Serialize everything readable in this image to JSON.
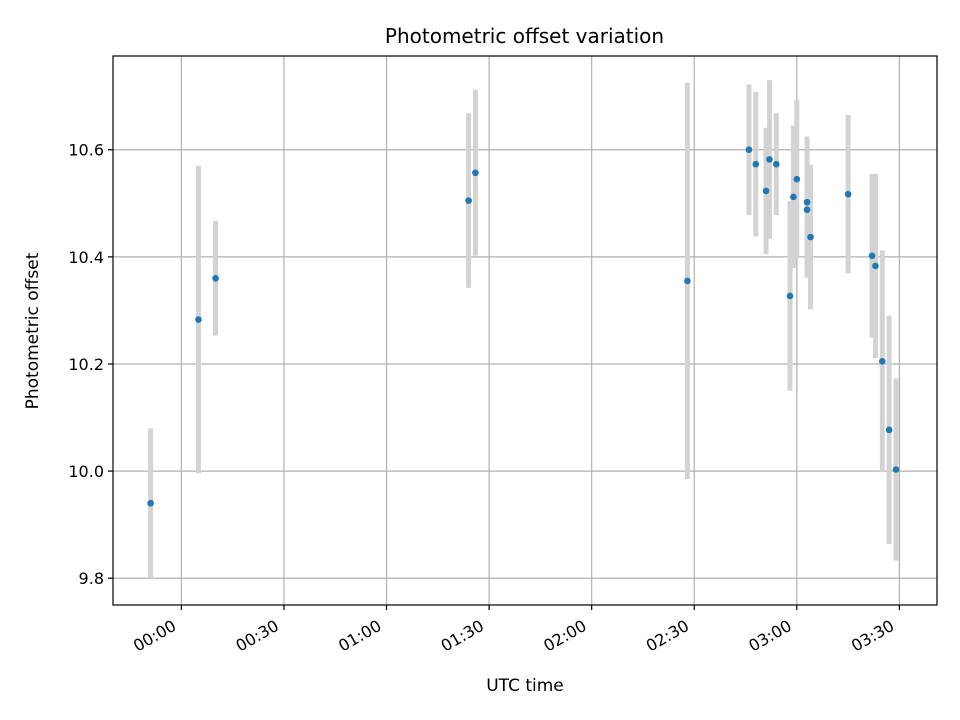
{
  "chart_data": {
    "type": "scatter",
    "title": "Photometric offset variation",
    "xlabel": "UTC time",
    "ylabel": "Photometric offset",
    "x_ticks": [
      "00:00",
      "00:30",
      "01:00",
      "01:30",
      "02:00",
      "02:30",
      "03:00",
      "03:30"
    ],
    "y_ticks": [
      "9.8",
      "10.0",
      "10.2",
      "10.4",
      "10.6"
    ],
    "x_tick_values": [
      "00:00",
      "00:30",
      "01:00",
      "01:30",
      "02:00",
      "02:30",
      "03:00",
      "03:30"
    ],
    "y_tick_values": [
      9.8,
      10.0,
      10.2,
      10.4,
      10.6
    ],
    "xlim": [
      "23:40",
      "03:41"
    ],
    "ylim": [
      9.75,
      10.775
    ],
    "grid": true,
    "marker_color": "#1f77b4",
    "errorbar_color": "#d3d3d3",
    "points": [
      {
        "x": "23:51",
        "y": 9.94,
        "err": 0.14
      },
      {
        "x": "00:05",
        "y": 10.283,
        "err": 0.287
      },
      {
        "x": "00:10",
        "y": 10.36,
        "err": 0.107
      },
      {
        "x": "01:24",
        "y": 10.505,
        "err": 0.163
      },
      {
        "x": "01:26",
        "y": 10.557,
        "err": 0.155
      },
      {
        "x": "02:28",
        "y": 10.355,
        "err": 0.37
      },
      {
        "x": "02:46",
        "y": 10.6,
        "err": 0.122
      },
      {
        "x": "02:48",
        "y": 10.573,
        "err": 0.135
      },
      {
        "x": "02:51",
        "y": 10.523,
        "err": 0.118
      },
      {
        "x": "02:52",
        "y": 10.582,
        "err": 0.148
      },
      {
        "x": "02:54",
        "y": 10.573,
        "err": 0.095
      },
      {
        "x": "02:58",
        "y": 10.327,
        "err": 0.177
      },
      {
        "x": "02:59",
        "y": 10.512,
        "err": 0.133
      },
      {
        "x": "03:00",
        "y": 10.545,
        "err": 0.148
      },
      {
        "x": "03:03",
        "y": 10.502,
        "err": 0.123
      },
      {
        "x": "03:03",
        "y": 10.488,
        "err": 0.127
      },
      {
        "x": "03:04",
        "y": 10.437,
        "err": 0.135
      },
      {
        "x": "03:15",
        "y": 10.517,
        "err": 0.148
      },
      {
        "x": "03:22",
        "y": 10.402,
        "err": 0.153
      },
      {
        "x": "03:23",
        "y": 10.383,
        "err": 0.172
      },
      {
        "x": "03:25",
        "y": 10.205,
        "err": 0.207
      },
      {
        "x": "03:27",
        "y": 10.077,
        "err": 0.213
      },
      {
        "x": "03:29",
        "y": 10.003,
        "err": 0.17
      }
    ]
  }
}
